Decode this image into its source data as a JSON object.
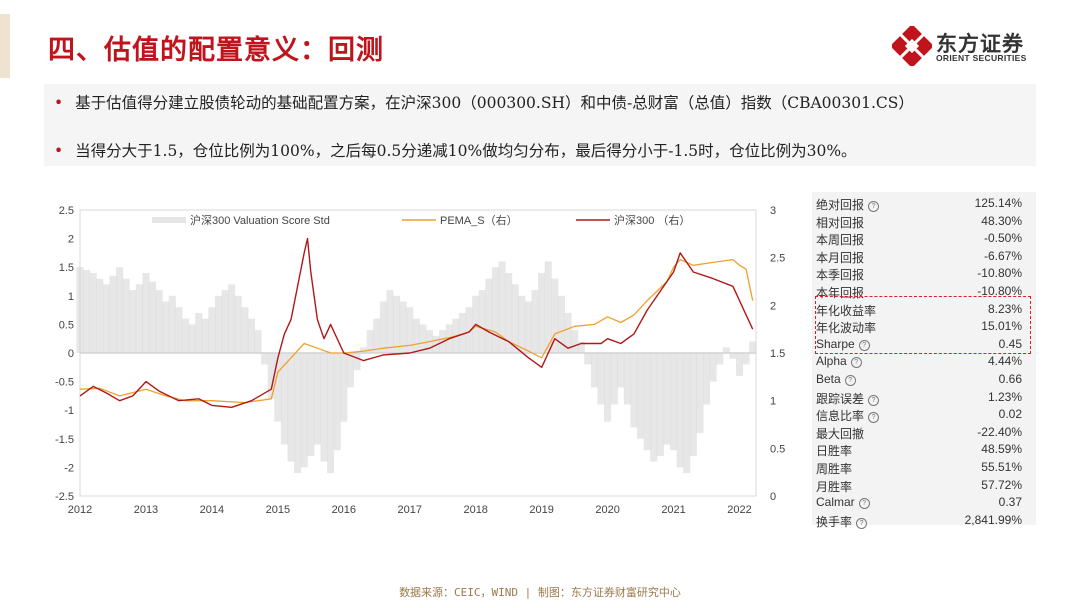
{
  "title": "四、估值的配置意义：回测",
  "logo": {
    "cn": "东方证券",
    "en": "ORIENT SECURITIES"
  },
  "bullets": [
    "基于估值得分建立股债轮动的基础配置方案，在沪深300（000300.SH）和中债-总财富（总值）指数（CBA00301.CS）",
    "当得分大于1.5，仓位比例为100%，之后每0.5分递减10%做均匀分布，最后得分小于-1.5时，仓位比例为30%。"
  ],
  "colors": {
    "accent": "#c0141c",
    "pema": "#f0a030",
    "hs300": "#b01818",
    "score": "#d4d4d4"
  },
  "chart_data": {
    "type": "line",
    "legend": [
      {
        "name": "沪深300 Valuation Score Std",
        "kind": "area"
      },
      {
        "name": "PEMA_S（右）",
        "kind": "line"
      },
      {
        "name": "沪深300 （右）",
        "kind": "line"
      }
    ],
    "x_ticks": [
      "2012",
      "2013",
      "2014",
      "2015",
      "2016",
      "2017",
      "2018",
      "2019",
      "2020",
      "2021",
      "2022"
    ],
    "xlim": [
      2012.0,
      2022.25
    ],
    "left_axis": {
      "ylim": [
        -2.5,
        2.5
      ],
      "ticks": [
        "2.5",
        "2",
        "1.5",
        "1",
        "0.5",
        "0",
        "-0.5",
        "-1",
        "-1.5",
        "-2",
        "-2.5"
      ]
    },
    "right_axis": {
      "ylim": [
        0,
        3
      ],
      "ticks": [
        "3",
        "2.5",
        "2",
        "1.5",
        "1",
        "0.5",
        "0"
      ]
    },
    "series": [
      {
        "name": "沪深300 Valuation Score Std",
        "axis": "left",
        "x": [
          2012.0,
          2012.1,
          2012.2,
          2012.3,
          2012.4,
          2012.5,
          2012.6,
          2012.7,
          2012.8,
          2012.9,
          2013.0,
          2013.1,
          2013.2,
          2013.3,
          2013.4,
          2013.5,
          2013.6,
          2013.7,
          2013.8,
          2013.9,
          2014.0,
          2014.1,
          2014.2,
          2014.3,
          2014.4,
          2014.5,
          2014.6,
          2014.7,
          2014.8,
          2014.9,
          2015.0,
          2015.1,
          2015.2,
          2015.3,
          2015.4,
          2015.5,
          2015.6,
          2015.7,
          2015.8,
          2015.9,
          2016.0,
          2016.1,
          2016.2,
          2016.3,
          2016.4,
          2016.5,
          2016.6,
          2016.7,
          2016.8,
          2016.9,
          2017.0,
          2017.1,
          2017.2,
          2017.3,
          2017.4,
          2017.5,
          2017.6,
          2017.7,
          2017.8,
          2017.9,
          2018.0,
          2018.1,
          2018.2,
          2018.3,
          2018.4,
          2018.5,
          2018.6,
          2018.7,
          2018.8,
          2018.9,
          2019.0,
          2019.1,
          2019.2,
          2019.3,
          2019.4,
          2019.5,
          2019.6,
          2019.7,
          2019.8,
          2019.9,
          2020.0,
          2020.1,
          2020.2,
          2020.3,
          2020.4,
          2020.5,
          2020.6,
          2020.7,
          2020.8,
          2020.9,
          2021.0,
          2021.1,
          2021.2,
          2021.3,
          2021.4,
          2021.5,
          2021.6,
          2021.7,
          2021.8,
          2021.9,
          2022.0,
          2022.1,
          2022.2
        ],
        "values": [
          1.5,
          1.45,
          1.4,
          1.3,
          1.2,
          1.35,
          1.5,
          1.3,
          1.1,
          1.2,
          1.4,
          1.25,
          1.1,
          0.9,
          1.0,
          0.8,
          0.6,
          0.5,
          0.7,
          0.6,
          0.8,
          1.0,
          1.1,
          1.2,
          1.0,
          0.8,
          0.6,
          0.4,
          -0.2,
          -0.8,
          -1.2,
          -1.6,
          -1.9,
          -2.1,
          -2.0,
          -1.8,
          -1.6,
          -1.9,
          -2.1,
          -1.7,
          -1.2,
          -0.6,
          -0.3,
          0.1,
          0.4,
          0.6,
          0.9,
          1.1,
          1.0,
          0.9,
          0.8,
          0.6,
          0.5,
          0.4,
          0.3,
          0.4,
          0.5,
          0.6,
          0.7,
          0.8,
          1.0,
          1.1,
          1.3,
          1.5,
          1.6,
          1.4,
          1.2,
          1.0,
          0.9,
          1.1,
          1.4,
          1.6,
          1.3,
          1.0,
          0.7,
          0.4,
          0.2,
          -0.2,
          -0.6,
          -0.9,
          -1.2,
          -0.9,
          -0.6,
          -0.9,
          -1.3,
          -1.5,
          -1.7,
          -1.9,
          -1.8,
          -1.6,
          -1.7,
          -2.0,
          -2.1,
          -1.8,
          -1.4,
          -0.9,
          -0.5,
          -0.2,
          0.1,
          -0.1,
          -0.4,
          -0.2,
          0.2
        ]
      },
      {
        "name": "PEMA_S（右）",
        "axis": "right",
        "x": [
          2012.0,
          2012.3,
          2012.6,
          2013.0,
          2013.3,
          2013.6,
          2014.0,
          2014.5,
          2014.9,
          2015.0,
          2015.2,
          2015.4,
          2015.6,
          2015.8,
          2016.0,
          2016.3,
          2016.6,
          2017.0,
          2017.3,
          2017.6,
          2017.9,
          2018.0,
          2018.3,
          2018.5,
          2018.8,
          2019.0,
          2019.2,
          2019.5,
          2019.8,
          2020.0,
          2020.2,
          2020.4,
          2020.6,
          2020.9,
          2021.0,
          2021.1,
          2021.3,
          2021.6,
          2021.9,
          2022.0,
          2022.1,
          2022.2
        ],
        "values": [
          1.12,
          1.13,
          1.05,
          1.12,
          1.05,
          1.0,
          1.0,
          0.98,
          1.02,
          1.3,
          1.45,
          1.6,
          1.55,
          1.5,
          1.5,
          1.52,
          1.55,
          1.58,
          1.62,
          1.66,
          1.72,
          1.78,
          1.72,
          1.62,
          1.52,
          1.45,
          1.7,
          1.78,
          1.8,
          1.88,
          1.82,
          1.9,
          2.05,
          2.25,
          2.4,
          2.48,
          2.42,
          2.45,
          2.48,
          2.42,
          2.38,
          2.05
        ]
      },
      {
        "name": "沪深300 （右）",
        "axis": "right",
        "x": [
          2012.0,
          2012.2,
          2012.4,
          2012.6,
          2012.8,
          2013.0,
          2013.2,
          2013.5,
          2013.8,
          2014.0,
          2014.3,
          2014.6,
          2014.9,
          2015.0,
          2015.1,
          2015.2,
          2015.3,
          2015.4,
          2015.45,
          2015.5,
          2015.6,
          2015.7,
          2015.8,
          2016.0,
          2016.3,
          2016.6,
          2017.0,
          2017.3,
          2017.6,
          2017.9,
          2018.0,
          2018.2,
          2018.5,
          2018.8,
          2019.0,
          2019.2,
          2019.4,
          2019.6,
          2019.9,
          2020.0,
          2020.2,
          2020.4,
          2020.6,
          2020.9,
          2021.0,
          2021.1,
          2021.3,
          2021.6,
          2021.9,
          2022.0,
          2022.1,
          2022.2
        ],
        "values": [
          1.05,
          1.15,
          1.08,
          1.0,
          1.05,
          1.2,
          1.1,
          1.0,
          1.02,
          0.95,
          0.93,
          1.0,
          1.12,
          1.45,
          1.7,
          1.85,
          2.2,
          2.55,
          2.7,
          2.35,
          1.85,
          1.65,
          1.8,
          1.5,
          1.42,
          1.48,
          1.5,
          1.55,
          1.65,
          1.72,
          1.8,
          1.72,
          1.62,
          1.45,
          1.35,
          1.65,
          1.55,
          1.6,
          1.6,
          1.65,
          1.6,
          1.7,
          1.95,
          2.25,
          2.35,
          2.55,
          2.35,
          2.28,
          2.2,
          2.05,
          1.9,
          1.75
        ]
      }
    ]
  },
  "stats": [
    {
      "label": "绝对回报",
      "help": true,
      "value": "125.14%"
    },
    {
      "label": "相对回报",
      "help": false,
      "value": "48.30%"
    },
    {
      "label": "本周回报",
      "help": false,
      "value": "-0.50%"
    },
    {
      "label": "本月回报",
      "help": false,
      "value": "-6.67%"
    },
    {
      "label": "本季回报",
      "help": false,
      "value": "-10.80%"
    },
    {
      "label": "本年回报",
      "help": false,
      "value": "-10.80%"
    },
    {
      "label": "年化收益率",
      "help": false,
      "value": "8.23%"
    },
    {
      "label": "年化波动率",
      "help": false,
      "value": "15.01%"
    },
    {
      "label": "Sharpe",
      "help": true,
      "value": "0.45"
    },
    {
      "label": "Alpha",
      "help": true,
      "value": "4.44%"
    },
    {
      "label": "Beta",
      "help": true,
      "value": "0.66"
    },
    {
      "label": "跟踪误差",
      "help": true,
      "value": "1.23%"
    },
    {
      "label": "信息比率",
      "help": true,
      "value": "0.02"
    },
    {
      "label": "最大回撤",
      "help": false,
      "value": "-22.40%"
    },
    {
      "label": "日胜率",
      "help": false,
      "value": "48.59%"
    },
    {
      "label": "周胜率",
      "help": false,
      "value": "55.51%"
    },
    {
      "label": "月胜率",
      "help": false,
      "value": "57.72%"
    },
    {
      "label": "Calmar",
      "help": true,
      "value": "0.37"
    },
    {
      "label": "换手率",
      "help": true,
      "value": "2,841.99%"
    }
  ],
  "help_glyph": "?",
  "footer": "数据来源：CEIC，WIND  |  制图：东方证券财富研究中心"
}
